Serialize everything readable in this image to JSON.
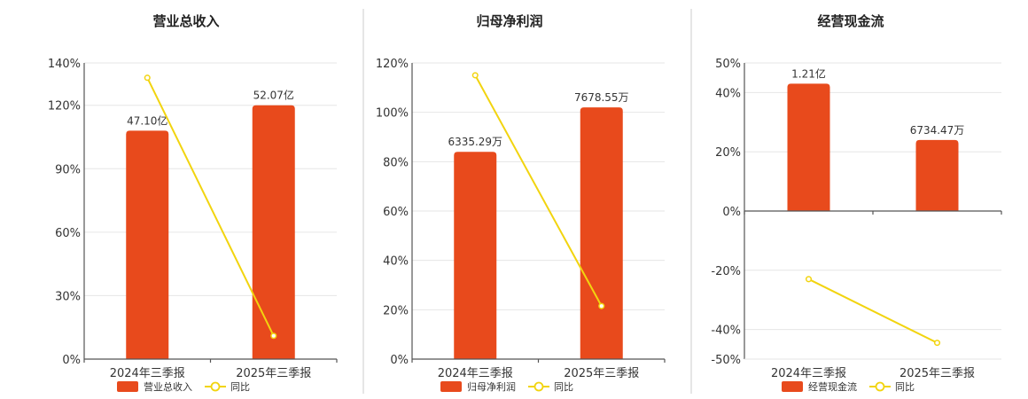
{
  "colors": {
    "bar": "#E84A1C",
    "line": "#F2D40F",
    "marker_fill": "#ffffff"
  },
  "legend": {
    "line_name": "同比"
  },
  "chart_data": [
    {
      "type": "bar",
      "title": "营业总收入",
      "categories": [
        "2024年三季报",
        "2025年三季报"
      ],
      "ylim": [
        0,
        140
      ],
      "yticks": [
        "0%",
        "30%",
        "60%",
        "90%",
        "120%",
        "140%"
      ],
      "ytick_values": [
        0,
        30,
        60,
        90,
        120,
        140
      ],
      "series": [
        {
          "name": "营业总收入",
          "kind": "bar",
          "values": [
            108,
            120
          ],
          "labels": [
            "47.10亿",
            "52.07亿"
          ]
        },
        {
          "name": "同比",
          "kind": "line",
          "values": [
            133,
            11
          ]
        }
      ],
      "grid": true,
      "legend_position": "bottom"
    },
    {
      "type": "bar",
      "title": "归母净利润",
      "categories": [
        "2024年三季报",
        "2025年三季报"
      ],
      "ylim": [
        0,
        120
      ],
      "yticks": [
        "0%",
        "20%",
        "40%",
        "60%",
        "80%",
        "100%",
        "120%"
      ],
      "ytick_values": [
        0,
        20,
        40,
        60,
        80,
        100,
        120
      ],
      "series": [
        {
          "name": "归母净利润",
          "kind": "bar",
          "values": [
            84,
            102
          ],
          "labels": [
            "6335.29万",
            "7678.55万"
          ]
        },
        {
          "name": "同比",
          "kind": "line",
          "values": [
            115,
            21.5
          ]
        }
      ],
      "grid": true,
      "legend_position": "bottom"
    },
    {
      "type": "bar",
      "title": "经营现金流",
      "categories": [
        "2024年三季报",
        "2025年三季报"
      ],
      "ylim": [
        -50,
        50
      ],
      "yticks": [
        "-50%",
        "-40%",
        "-20%",
        "0%",
        "20%",
        "40%",
        "50%"
      ],
      "ytick_values": [
        -50,
        -40,
        -20,
        0,
        20,
        40,
        50
      ],
      "series": [
        {
          "name": "经营现金流",
          "kind": "bar",
          "values": [
            43,
            24
          ],
          "labels": [
            "1.21亿",
            "6734.47万"
          ]
        },
        {
          "name": "同比",
          "kind": "line",
          "values": [
            -23,
            -44.5
          ]
        }
      ],
      "grid": true,
      "legend_position": "bottom"
    }
  ]
}
